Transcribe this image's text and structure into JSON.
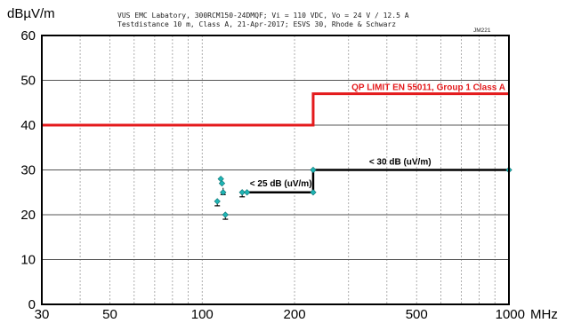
{
  "chart_data": {
    "type": "line",
    "header": {
      "line1": "VUS EMC Labatory, 300RCM150-24DMQF; Vi = 110 VDC, Vo = 24 V / 12.5 A",
      "line2": "Testdistance 10 m, Class A, 21-Apr-2017; ESVS 30, Rhode & Schwarz",
      "tag": "JM221"
    },
    "ylabel": "dBµV/m",
    "xunit": "MHz",
    "xscale": "log",
    "xlim": [
      30,
      1000
    ],
    "ylim": [
      0,
      60
    ],
    "grid": true,
    "x_ticks": [
      30,
      50,
      100,
      200,
      500,
      1000
    ],
    "y_ticks": [
      0,
      10,
      20,
      30,
      40,
      50,
      60
    ],
    "limit_line": {
      "label": "QP LIMIT  EN 55011, Group 1 Class A",
      "color": "#e41a1c",
      "points": [
        [
          30,
          40
        ],
        [
          230,
          40
        ],
        [
          230,
          47
        ],
        [
          1000,
          47
        ]
      ]
    },
    "margin_line": {
      "color": "#000000",
      "points": [
        [
          140,
          25
        ],
        [
          230,
          25
        ],
        [
          230,
          30
        ],
        [
          1000,
          30
        ]
      ],
      "labels": [
        {
          "text": "< 25 dB (uV/m)",
          "x": 143,
          "y": 26.3
        },
        {
          "text": "< 30 dB (uV/m)",
          "x": 350,
          "y": 31.2
        }
      ]
    },
    "markers": {
      "color": "#1fb5b5",
      "points": [
        [
          112,
          23
        ],
        [
          115,
          28
        ],
        [
          116,
          27
        ],
        [
          117,
          25
        ],
        [
          119,
          20
        ],
        [
          135,
          25
        ],
        [
          140,
          25
        ],
        [
          230,
          30
        ],
        [
          230,
          25
        ],
        [
          1000,
          30
        ]
      ]
    },
    "error_bars": [
      {
        "x": 112,
        "y": 22,
        "top": 23.5
      },
      {
        "x": 117,
        "y": 24.5,
        "top": 26
      },
      {
        "x": 119,
        "y": 19,
        "top": 20.5
      },
      {
        "x": 135,
        "y": 24,
        "top": 25.5
      }
    ]
  }
}
